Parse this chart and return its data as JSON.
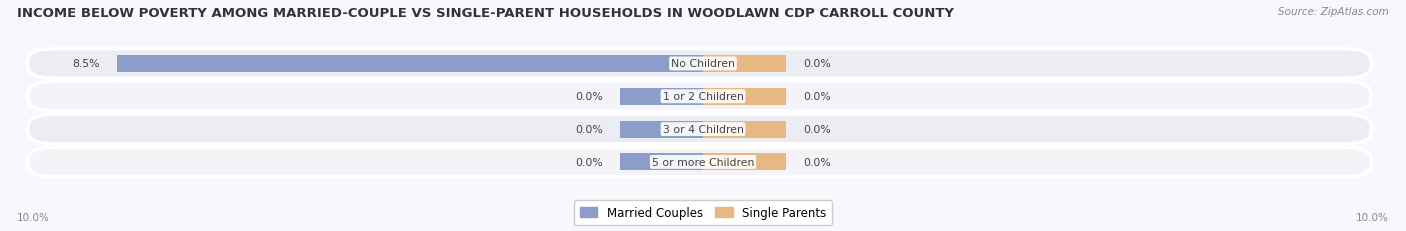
{
  "title": "INCOME BELOW POVERTY AMONG MARRIED-COUPLE VS SINGLE-PARENT HOUSEHOLDS IN WOODLAWN CDP CARROLL COUNTY",
  "source": "Source: ZipAtlas.com",
  "categories": [
    "No Children",
    "1 or 2 Children",
    "3 or 4 Children",
    "5 or more Children"
  ],
  "married_values": [
    8.5,
    0.0,
    0.0,
    0.0
  ],
  "single_values": [
    0.0,
    0.0,
    0.0,
    0.0
  ],
  "married_color": "#8B9DC8",
  "single_color": "#E8B882",
  "row_bg_even": "#ECEDF4",
  "row_bg_odd": "#F4F4F8",
  "label_color": "#444444",
  "title_color": "#333333",
  "axis_label_color": "#888888",
  "source_color": "#888888",
  "bg_color": "#F8F8FC",
  "xlim": 10.0,
  "legend_labels": [
    "Married Couples",
    "Single Parents"
  ],
  "title_fontsize": 9.5,
  "bar_height": 0.52,
  "stub_size": 1.2,
  "figsize": [
    14.06,
    2.32
  ],
  "dpi": 100
}
